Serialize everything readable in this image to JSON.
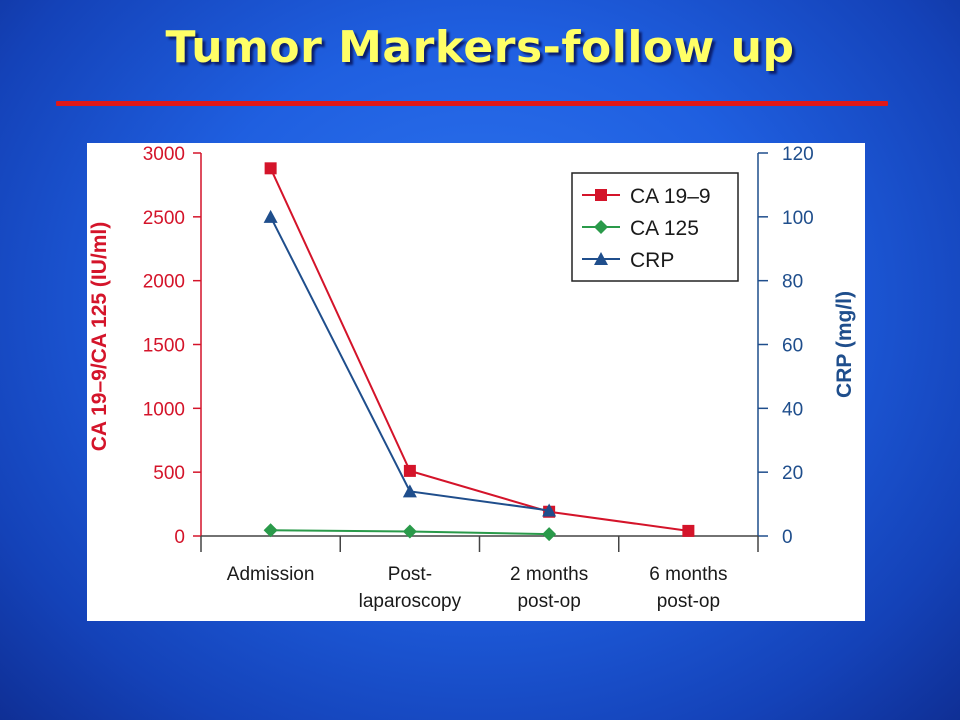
{
  "slide": {
    "title": "Tumor Markers-follow up"
  },
  "chart_data": {
    "type": "line",
    "categories": [
      [
        "Admission"
      ],
      [
        "Post-",
        "laparoscopy"
      ],
      [
        "2 months",
        "post-op"
      ],
      [
        "6 months",
        "post-op"
      ]
    ],
    "ylabel_left": "CA 19–9/CA 125 (IU/ml)",
    "ylabel_right": "CRP (mg/l)",
    "ylim_left": [
      0,
      3000
    ],
    "ylim_right": [
      0,
      120
    ],
    "yticks_left": [
      "0",
      "500",
      "1000",
      "1500",
      "2000",
      "2500",
      "3000"
    ],
    "yticks_right": [
      "0",
      "20",
      "40",
      "60",
      "80",
      "100",
      "120"
    ],
    "legend_position": "top-right",
    "grid": false,
    "series": [
      {
        "name": "CA 19–9",
        "axis": "left",
        "color": "#d4142a",
        "marker": "square",
        "values": [
          2880,
          510,
          190,
          40
        ]
      },
      {
        "name": "CA 125",
        "axis": "left",
        "color": "#2a9a4a",
        "marker": "diamond",
        "values": [
          45,
          35,
          15,
          null
        ]
      },
      {
        "name": "CRP",
        "axis": "right",
        "color": "#1f4e8c",
        "marker": "triangle",
        "values": [
          100,
          14,
          8,
          null
        ]
      }
    ]
  }
}
